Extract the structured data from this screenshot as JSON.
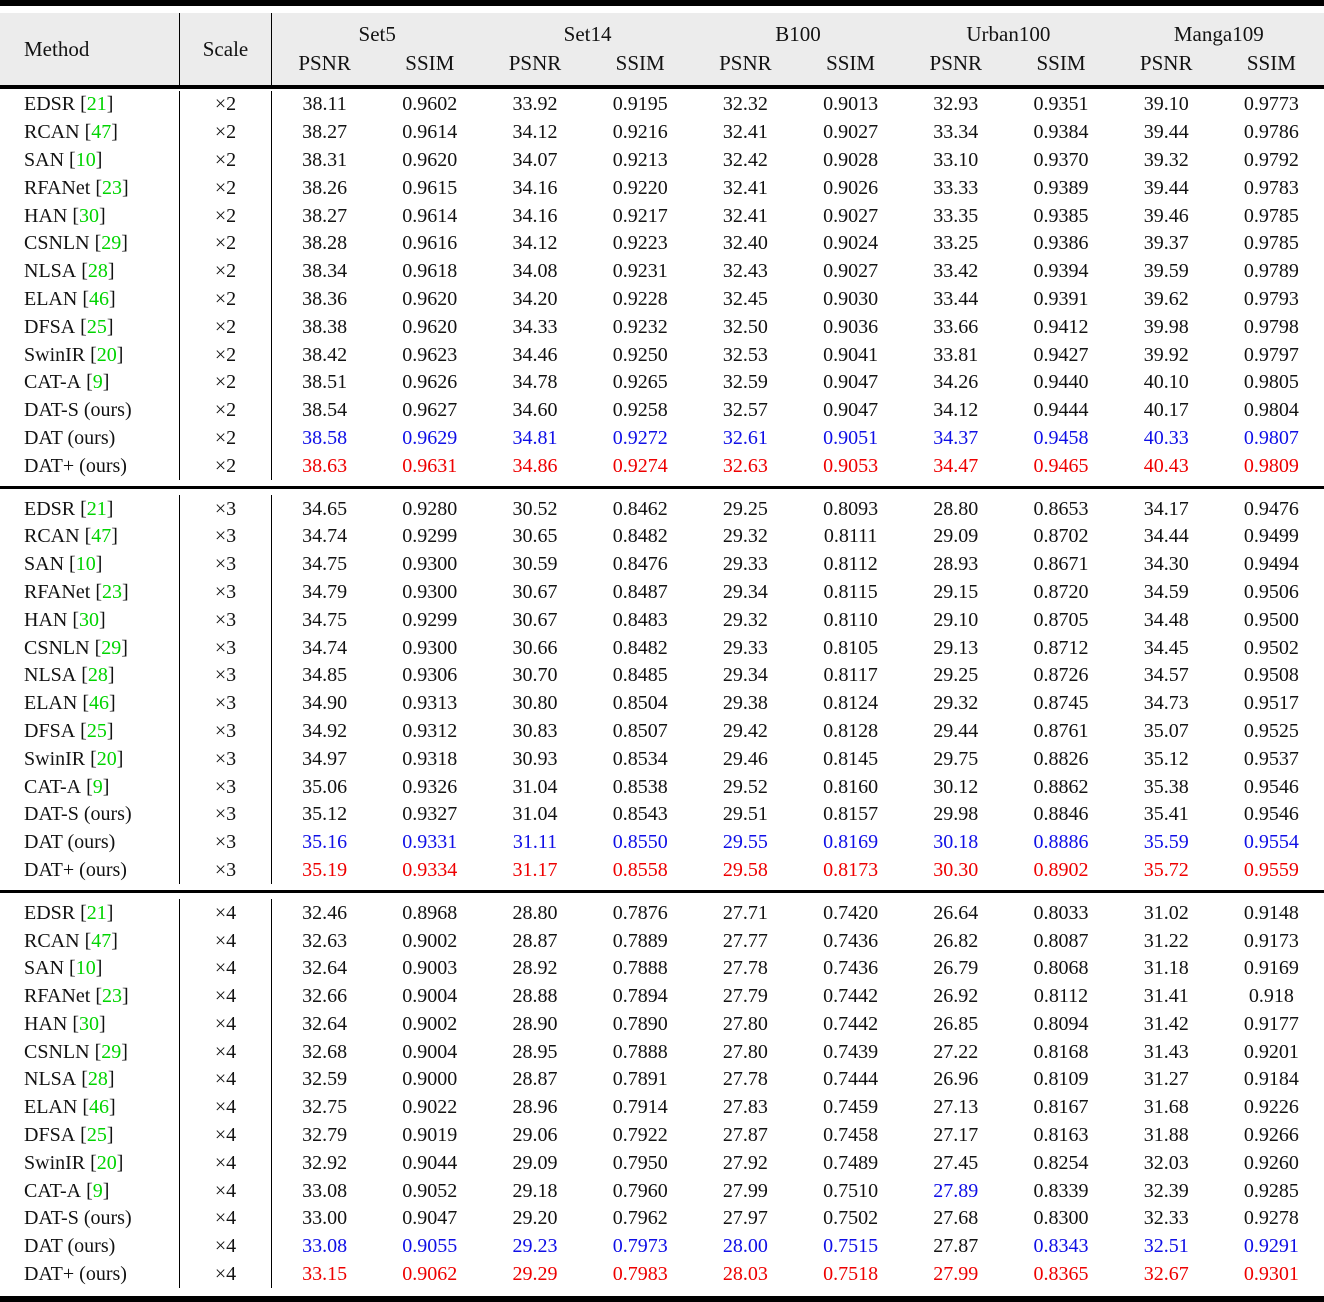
{
  "table": {
    "columns": {
      "method": "Method",
      "scale": "Scale"
    },
    "groups": [
      {
        "name": "Set5",
        "sub": [
          "PSNR",
          "SSIM"
        ]
      },
      {
        "name": "Set14",
        "sub": [
          "PSNR",
          "SSIM"
        ]
      },
      {
        "name": "B100",
        "sub": [
          "PSNR",
          "SSIM"
        ]
      },
      {
        "name": "Urban100",
        "sub": [
          "PSNR",
          "SSIM"
        ]
      },
      {
        "name": "Manga109",
        "sub": [
          "PSNR",
          "SSIM"
        ]
      }
    ],
    "colors": {
      "best": "#ee0000",
      "second": "#0f0fe6",
      "citation": "#00d400"
    },
    "blocks": [
      {
        "scale": "×2",
        "rows": [
          {
            "method": "EDSR",
            "cite": "21",
            "values": [
              "38.11",
              "0.9602",
              "33.92",
              "0.9195",
              "32.32",
              "0.9013",
              "32.93",
              "0.9351",
              "39.10",
              "0.9773"
            ]
          },
          {
            "method": "RCAN",
            "cite": "47",
            "values": [
              "38.27",
              "0.9614",
              "34.12",
              "0.9216",
              "32.41",
              "0.9027",
              "33.34",
              "0.9384",
              "39.44",
              "0.9786"
            ]
          },
          {
            "method": "SAN",
            "cite": "10",
            "values": [
              "38.31",
              "0.9620",
              "34.07",
              "0.9213",
              "32.42",
              "0.9028",
              "33.10",
              "0.9370",
              "39.32",
              "0.9792"
            ]
          },
          {
            "method": "RFANet",
            "cite": "23",
            "values": [
              "38.26",
              "0.9615",
              "34.16",
              "0.9220",
              "32.41",
              "0.9026",
              "33.33",
              "0.9389",
              "39.44",
              "0.9783"
            ]
          },
          {
            "method": "HAN",
            "cite": "30",
            "values": [
              "38.27",
              "0.9614",
              "34.16",
              "0.9217",
              "32.41",
              "0.9027",
              "33.35",
              "0.9385",
              "39.46",
              "0.9785"
            ]
          },
          {
            "method": "CSNLN",
            "cite": "29",
            "values": [
              "38.28",
              "0.9616",
              "34.12",
              "0.9223",
              "32.40",
              "0.9024",
              "33.25",
              "0.9386",
              "39.37",
              "0.9785"
            ]
          },
          {
            "method": "NLSA",
            "cite": "28",
            "values": [
              "38.34",
              "0.9618",
              "34.08",
              "0.9231",
              "32.43",
              "0.9027",
              "33.42",
              "0.9394",
              "39.59",
              "0.9789"
            ]
          },
          {
            "method": "ELAN",
            "cite": "46",
            "values": [
              "38.36",
              "0.9620",
              "34.20",
              "0.9228",
              "32.45",
              "0.9030",
              "33.44",
              "0.9391",
              "39.62",
              "0.9793"
            ]
          },
          {
            "method": "DFSA",
            "cite": "25",
            "values": [
              "38.38",
              "0.9620",
              "34.33",
              "0.9232",
              "32.50",
              "0.9036",
              "33.66",
              "0.9412",
              "39.98",
              "0.9798"
            ]
          },
          {
            "method": "SwinIR",
            "cite": "20",
            "values": [
              "38.42",
              "0.9623",
              "34.46",
              "0.9250",
              "32.53",
              "0.9041",
              "33.81",
              "0.9427",
              "39.92",
              "0.9797"
            ]
          },
          {
            "method": "CAT-A",
            "cite": "9",
            "values": [
              "38.51",
              "0.9626",
              "34.78",
              "0.9265",
              "32.59",
              "0.9047",
              "34.26",
              "0.9440",
              "40.10",
              "0.9805"
            ]
          },
          {
            "method": "DAT-S (ours)",
            "cite": null,
            "values": [
              "38.54",
              "0.9627",
              "34.60",
              "0.9258",
              "32.57",
              "0.9047",
              "34.12",
              "0.9444",
              "40.17",
              "0.9804"
            ]
          },
          {
            "method": "DAT (ours)",
            "cite": null,
            "highlight": "second",
            "values": [
              "38.58",
              "0.9629",
              "34.81",
              "0.9272",
              "32.61",
              "0.9051",
              "34.37",
              "0.9458",
              "40.33",
              "0.9807"
            ]
          },
          {
            "method": "DAT+ (ours)",
            "cite": null,
            "highlight": "best",
            "values": [
              "38.63",
              "0.9631",
              "34.86",
              "0.9274",
              "32.63",
              "0.9053",
              "34.47",
              "0.9465",
              "40.43",
              "0.9809"
            ]
          }
        ]
      },
      {
        "scale": "×3",
        "rows": [
          {
            "method": "EDSR",
            "cite": "21",
            "values": [
              "34.65",
              "0.9280",
              "30.52",
              "0.8462",
              "29.25",
              "0.8093",
              "28.80",
              "0.8653",
              "34.17",
              "0.9476"
            ]
          },
          {
            "method": "RCAN",
            "cite": "47",
            "values": [
              "34.74",
              "0.9299",
              "30.65",
              "0.8482",
              "29.32",
              "0.8111",
              "29.09",
              "0.8702",
              "34.44",
              "0.9499"
            ]
          },
          {
            "method": "SAN",
            "cite": "10",
            "values": [
              "34.75",
              "0.9300",
              "30.59",
              "0.8476",
              "29.33",
              "0.8112",
              "28.93",
              "0.8671",
              "34.30",
              "0.9494"
            ]
          },
          {
            "method": "RFANet",
            "cite": "23",
            "values": [
              "34.79",
              "0.9300",
              "30.67",
              "0.8487",
              "29.34",
              "0.8115",
              "29.15",
              "0.8720",
              "34.59",
              "0.9506"
            ]
          },
          {
            "method": "HAN",
            "cite": "30",
            "values": [
              "34.75",
              "0.9299",
              "30.67",
              "0.8483",
              "29.32",
              "0.8110",
              "29.10",
              "0.8705",
              "34.48",
              "0.9500"
            ]
          },
          {
            "method": "CSNLN",
            "cite": "29",
            "values": [
              "34.74",
              "0.9300",
              "30.66",
              "0.8482",
              "29.33",
              "0.8105",
              "29.13",
              "0.8712",
              "34.45",
              "0.9502"
            ]
          },
          {
            "method": "NLSA",
            "cite": "28",
            "values": [
              "34.85",
              "0.9306",
              "30.70",
              "0.8485",
              "29.34",
              "0.8117",
              "29.25",
              "0.8726",
              "34.57",
              "0.9508"
            ]
          },
          {
            "method": "ELAN",
            "cite": "46",
            "values": [
              "34.90",
              "0.9313",
              "30.80",
              "0.8504",
              "29.38",
              "0.8124",
              "29.32",
              "0.8745",
              "34.73",
              "0.9517"
            ]
          },
          {
            "method": "DFSA",
            "cite": "25",
            "values": [
              "34.92",
              "0.9312",
              "30.83",
              "0.8507",
              "29.42",
              "0.8128",
              "29.44",
              "0.8761",
              "35.07",
              "0.9525"
            ]
          },
          {
            "method": "SwinIR",
            "cite": "20",
            "values": [
              "34.97",
              "0.9318",
              "30.93",
              "0.8534",
              "29.46",
              "0.8145",
              "29.75",
              "0.8826",
              "35.12",
              "0.9537"
            ]
          },
          {
            "method": "CAT-A",
            "cite": "9",
            "values": [
              "35.06",
              "0.9326",
              "31.04",
              "0.8538",
              "29.52",
              "0.8160",
              "30.12",
              "0.8862",
              "35.38",
              "0.9546"
            ]
          },
          {
            "method": "DAT-S (ours)",
            "cite": null,
            "values": [
              "35.12",
              "0.9327",
              "31.04",
              "0.8543",
              "29.51",
              "0.8157",
              "29.98",
              "0.8846",
              "35.41",
              "0.9546"
            ]
          },
          {
            "method": "DAT (ours)",
            "cite": null,
            "highlight": "second",
            "values": [
              "35.16",
              "0.9331",
              "31.11",
              "0.8550",
              "29.55",
              "0.8169",
              "30.18",
              "0.8886",
              "35.59",
              "0.9554"
            ]
          },
          {
            "method": "DAT+ (ours)",
            "cite": null,
            "highlight": "best",
            "values": [
              "35.19",
              "0.9334",
              "31.17",
              "0.8558",
              "29.58",
              "0.8173",
              "30.30",
              "0.8902",
              "35.72",
              "0.9559"
            ]
          }
        ]
      },
      {
        "scale": "×4",
        "rows": [
          {
            "method": "EDSR",
            "cite": "21",
            "values": [
              "32.46",
              "0.8968",
              "28.80",
              "0.7876",
              "27.71",
              "0.7420",
              "26.64",
              "0.8033",
              "31.02",
              "0.9148"
            ]
          },
          {
            "method": "RCAN",
            "cite": "47",
            "values": [
              "32.63",
              "0.9002",
              "28.87",
              "0.7889",
              "27.77",
              "0.7436",
              "26.82",
              "0.8087",
              "31.22",
              "0.9173"
            ]
          },
          {
            "method": "SAN",
            "cite": "10",
            "values": [
              "32.64",
              "0.9003",
              "28.92",
              "0.7888",
              "27.78",
              "0.7436",
              "26.79",
              "0.8068",
              "31.18",
              "0.9169"
            ]
          },
          {
            "method": "RFANet",
            "cite": "23",
            "values": [
              "32.66",
              "0.9004",
              "28.88",
              "0.7894",
              "27.79",
              "0.7442",
              "26.92",
              "0.8112",
              "31.41",
              "0.918"
            ]
          },
          {
            "method": "HAN",
            "cite": "30",
            "values": [
              "32.64",
              "0.9002",
              "28.90",
              "0.7890",
              "27.80",
              "0.7442",
              "26.85",
              "0.8094",
              "31.42",
              "0.9177"
            ]
          },
          {
            "method": "CSNLN",
            "cite": "29",
            "values": [
              "32.68",
              "0.9004",
              "28.95",
              "0.7888",
              "27.80",
              "0.7439",
              "27.22",
              "0.8168",
              "31.43",
              "0.9201"
            ]
          },
          {
            "method": "NLSA",
            "cite": "28",
            "values": [
              "32.59",
              "0.9000",
              "28.87",
              "0.7891",
              "27.78",
              "0.7444",
              "26.96",
              "0.8109",
              "31.27",
              "0.9184"
            ]
          },
          {
            "method": "ELAN",
            "cite": "46",
            "values": [
              "32.75",
              "0.9022",
              "28.96",
              "0.7914",
              "27.83",
              "0.7459",
              "27.13",
              "0.8167",
              "31.68",
              "0.9226"
            ]
          },
          {
            "method": "DFSA",
            "cite": "25",
            "values": [
              "32.79",
              "0.9019",
              "29.06",
              "0.7922",
              "27.87",
              "0.7458",
              "27.17",
              "0.8163",
              "31.88",
              "0.9266"
            ]
          },
          {
            "method": "SwinIR",
            "cite": "20",
            "values": [
              "32.92",
              "0.9044",
              "29.09",
              "0.7950",
              "27.92",
              "0.7489",
              "27.45",
              "0.8254",
              "32.03",
              "0.9260"
            ]
          },
          {
            "method": "CAT-A",
            "cite": "9",
            "cell_highlight": {
              "6": "second"
            },
            "values": [
              "33.08",
              "0.9052",
              "29.18",
              "0.7960",
              "27.99",
              "0.7510",
              "27.89",
              "0.8339",
              "32.39",
              "0.9285"
            ]
          },
          {
            "method": "DAT-S (ours)",
            "cite": null,
            "values": [
              "33.00",
              "0.9047",
              "29.20",
              "0.7962",
              "27.97",
              "0.7502",
              "27.68",
              "0.8300",
              "32.33",
              "0.9278"
            ]
          },
          {
            "method": "DAT (ours)",
            "cite": null,
            "highlight": "second",
            "highlight_except": [
              6
            ],
            "values": [
              "33.08",
              "0.9055",
              "29.23",
              "0.7973",
              "28.00",
              "0.7515",
              "27.87",
              "0.8343",
              "32.51",
              "0.9291"
            ]
          },
          {
            "method": "DAT+ (ours)",
            "cite": null,
            "highlight": "best",
            "values": [
              "33.15",
              "0.9062",
              "29.29",
              "0.7983",
              "28.03",
              "0.7518",
              "27.99",
              "0.8365",
              "32.67",
              "0.9301"
            ]
          }
        ]
      }
    ]
  }
}
